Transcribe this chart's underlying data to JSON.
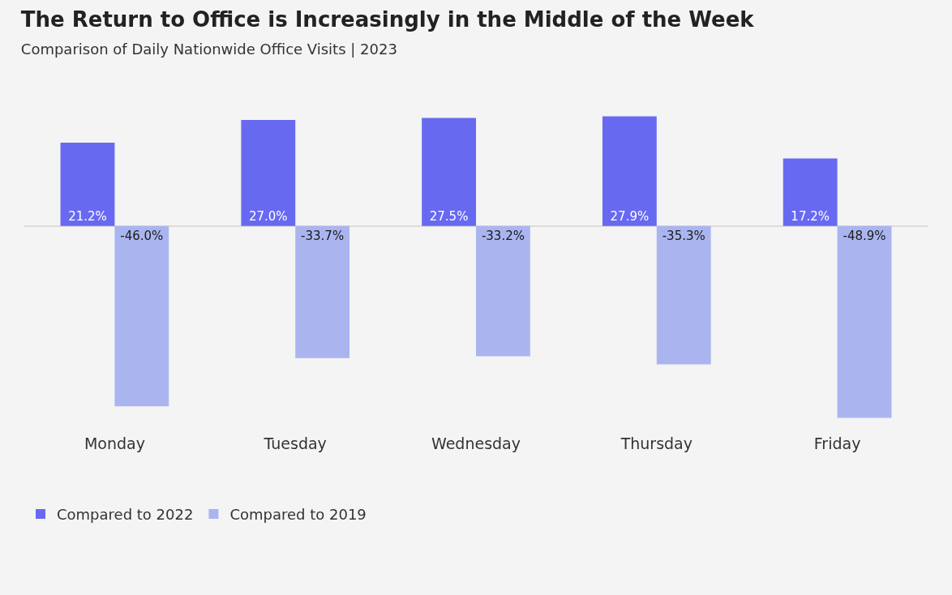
{
  "chart_data": {
    "type": "bar",
    "title": "The Return to Office is Increasingly in the Middle of the Week",
    "subtitle": "Comparison of Daily Nationwide Office Visits | 2023",
    "categories": [
      "Monday",
      "Tuesday",
      "Wednesday",
      "Thursday",
      "Friday"
    ],
    "series": [
      {
        "name": "Compared to 2022",
        "color": "#6869f1",
        "values": [
          21.2,
          27.0,
          27.5,
          27.9,
          17.2
        ],
        "value_labels": [
          "21.2%",
          "27.0%",
          "27.5%",
          "27.9%",
          "17.2%"
        ]
      },
      {
        "name": "Compared to 2019",
        "color": "#aab5f0",
        "values": [
          -46.0,
          -33.7,
          -33.2,
          -35.3,
          -48.9
        ],
        "value_labels": [
          "-46.0%",
          "-33.7%",
          "-33.2%",
          "-35.3%",
          "-48.9%"
        ]
      }
    ],
    "legend": "bottom left",
    "grid": false
  }
}
